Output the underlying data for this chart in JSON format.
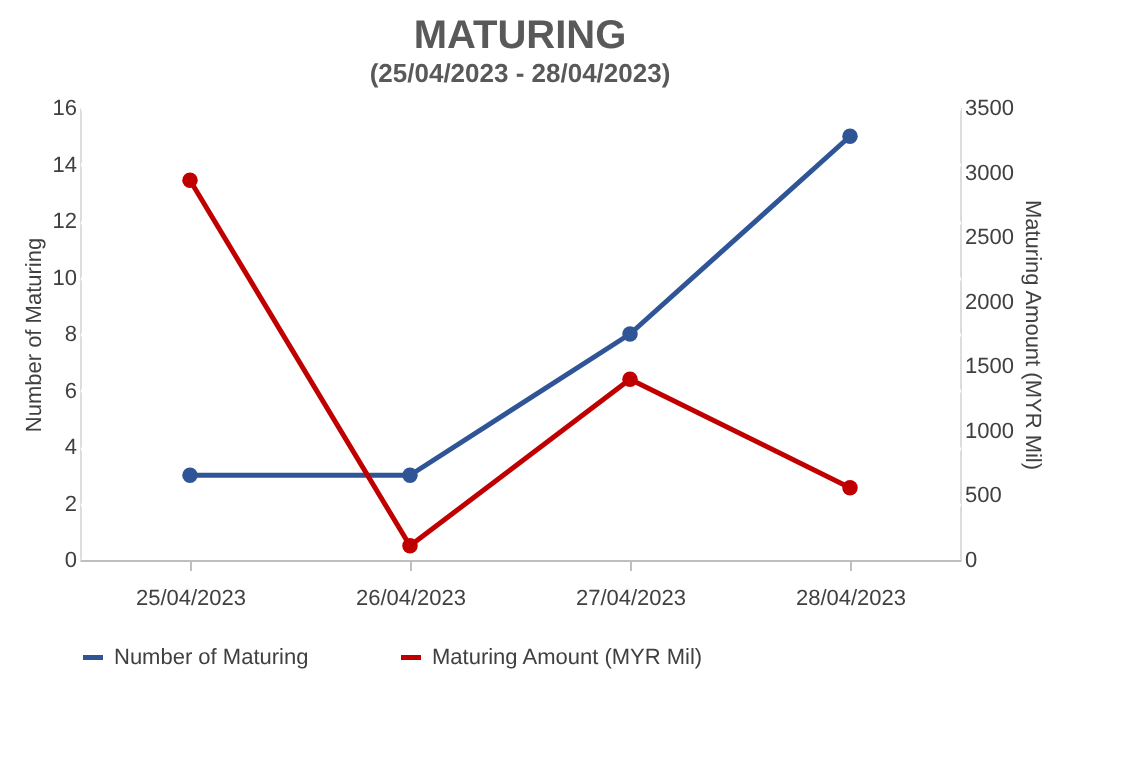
{
  "chart_data": {
    "type": "line",
    "title": "MATURING",
    "subtitle": "(25/04/2023  - 28/04/2023)",
    "categories": [
      "25/04/2023",
      "26/04/2023",
      "27/04/2023",
      "28/04/2023"
    ],
    "series": [
      {
        "name": "Number of Maturing",
        "color": "#2f5597",
        "values": [
          3,
          3,
          8,
          15
        ]
      },
      {
        "name": "Maturing Amount (MYR Mil)",
        "color": "#c00000",
        "values": [
          2940,
          110,
          1400,
          560
        ],
        "axis": "y2"
      }
    ],
    "ylabel": "Number of Maturing",
    "y2label": "Maturing Amount (MYR Mil)",
    "ylim": [
      0,
      16
    ],
    "yticks": [
      0,
      2,
      4,
      6,
      8,
      10,
      12,
      14,
      16
    ],
    "y2lim": [
      0,
      3500
    ],
    "y2ticks": [
      0,
      500,
      1000,
      1500,
      2000,
      2500,
      3000,
      3500
    ],
    "grid": true,
    "legend": "bottom",
    "marker": "circle",
    "line_style": "solid"
  }
}
